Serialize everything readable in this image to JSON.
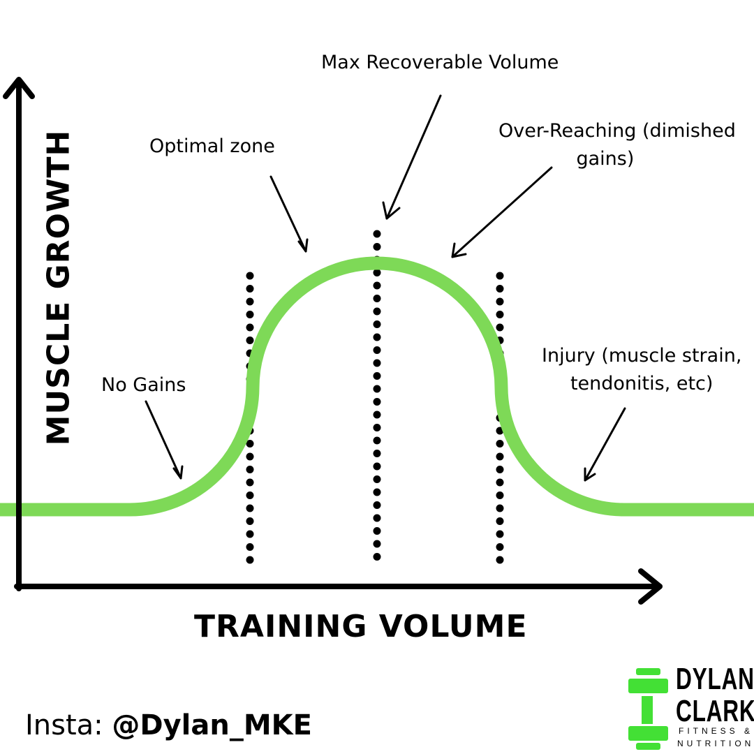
{
  "y_axis_label": "MUSCLE GROWTH",
  "x_axis_label": "TRAINING VOLUME",
  "annotations": {
    "max_recoverable": "Max Recoverable Volume",
    "optimal": "Optimal zone",
    "over_reaching_1": "Over-Reaching (dimished",
    "over_reaching_2": "gains)",
    "no_gains": "No Gains",
    "injury_1": "Injury (muscle strain,",
    "injury_2": "tendonitis, etc)"
  },
  "footer": {
    "insta_prefix": "Insta: ",
    "insta_handle": "@Dylan_MKE"
  },
  "logo": {
    "line1": "DYLAN",
    "line2": "CLARK",
    "line3": "FITNESS &",
    "line4": "NUTRITION"
  },
  "colors": {
    "curve": "#7ED957",
    "logo_green": "#43E035",
    "ink": "#000000"
  }
}
